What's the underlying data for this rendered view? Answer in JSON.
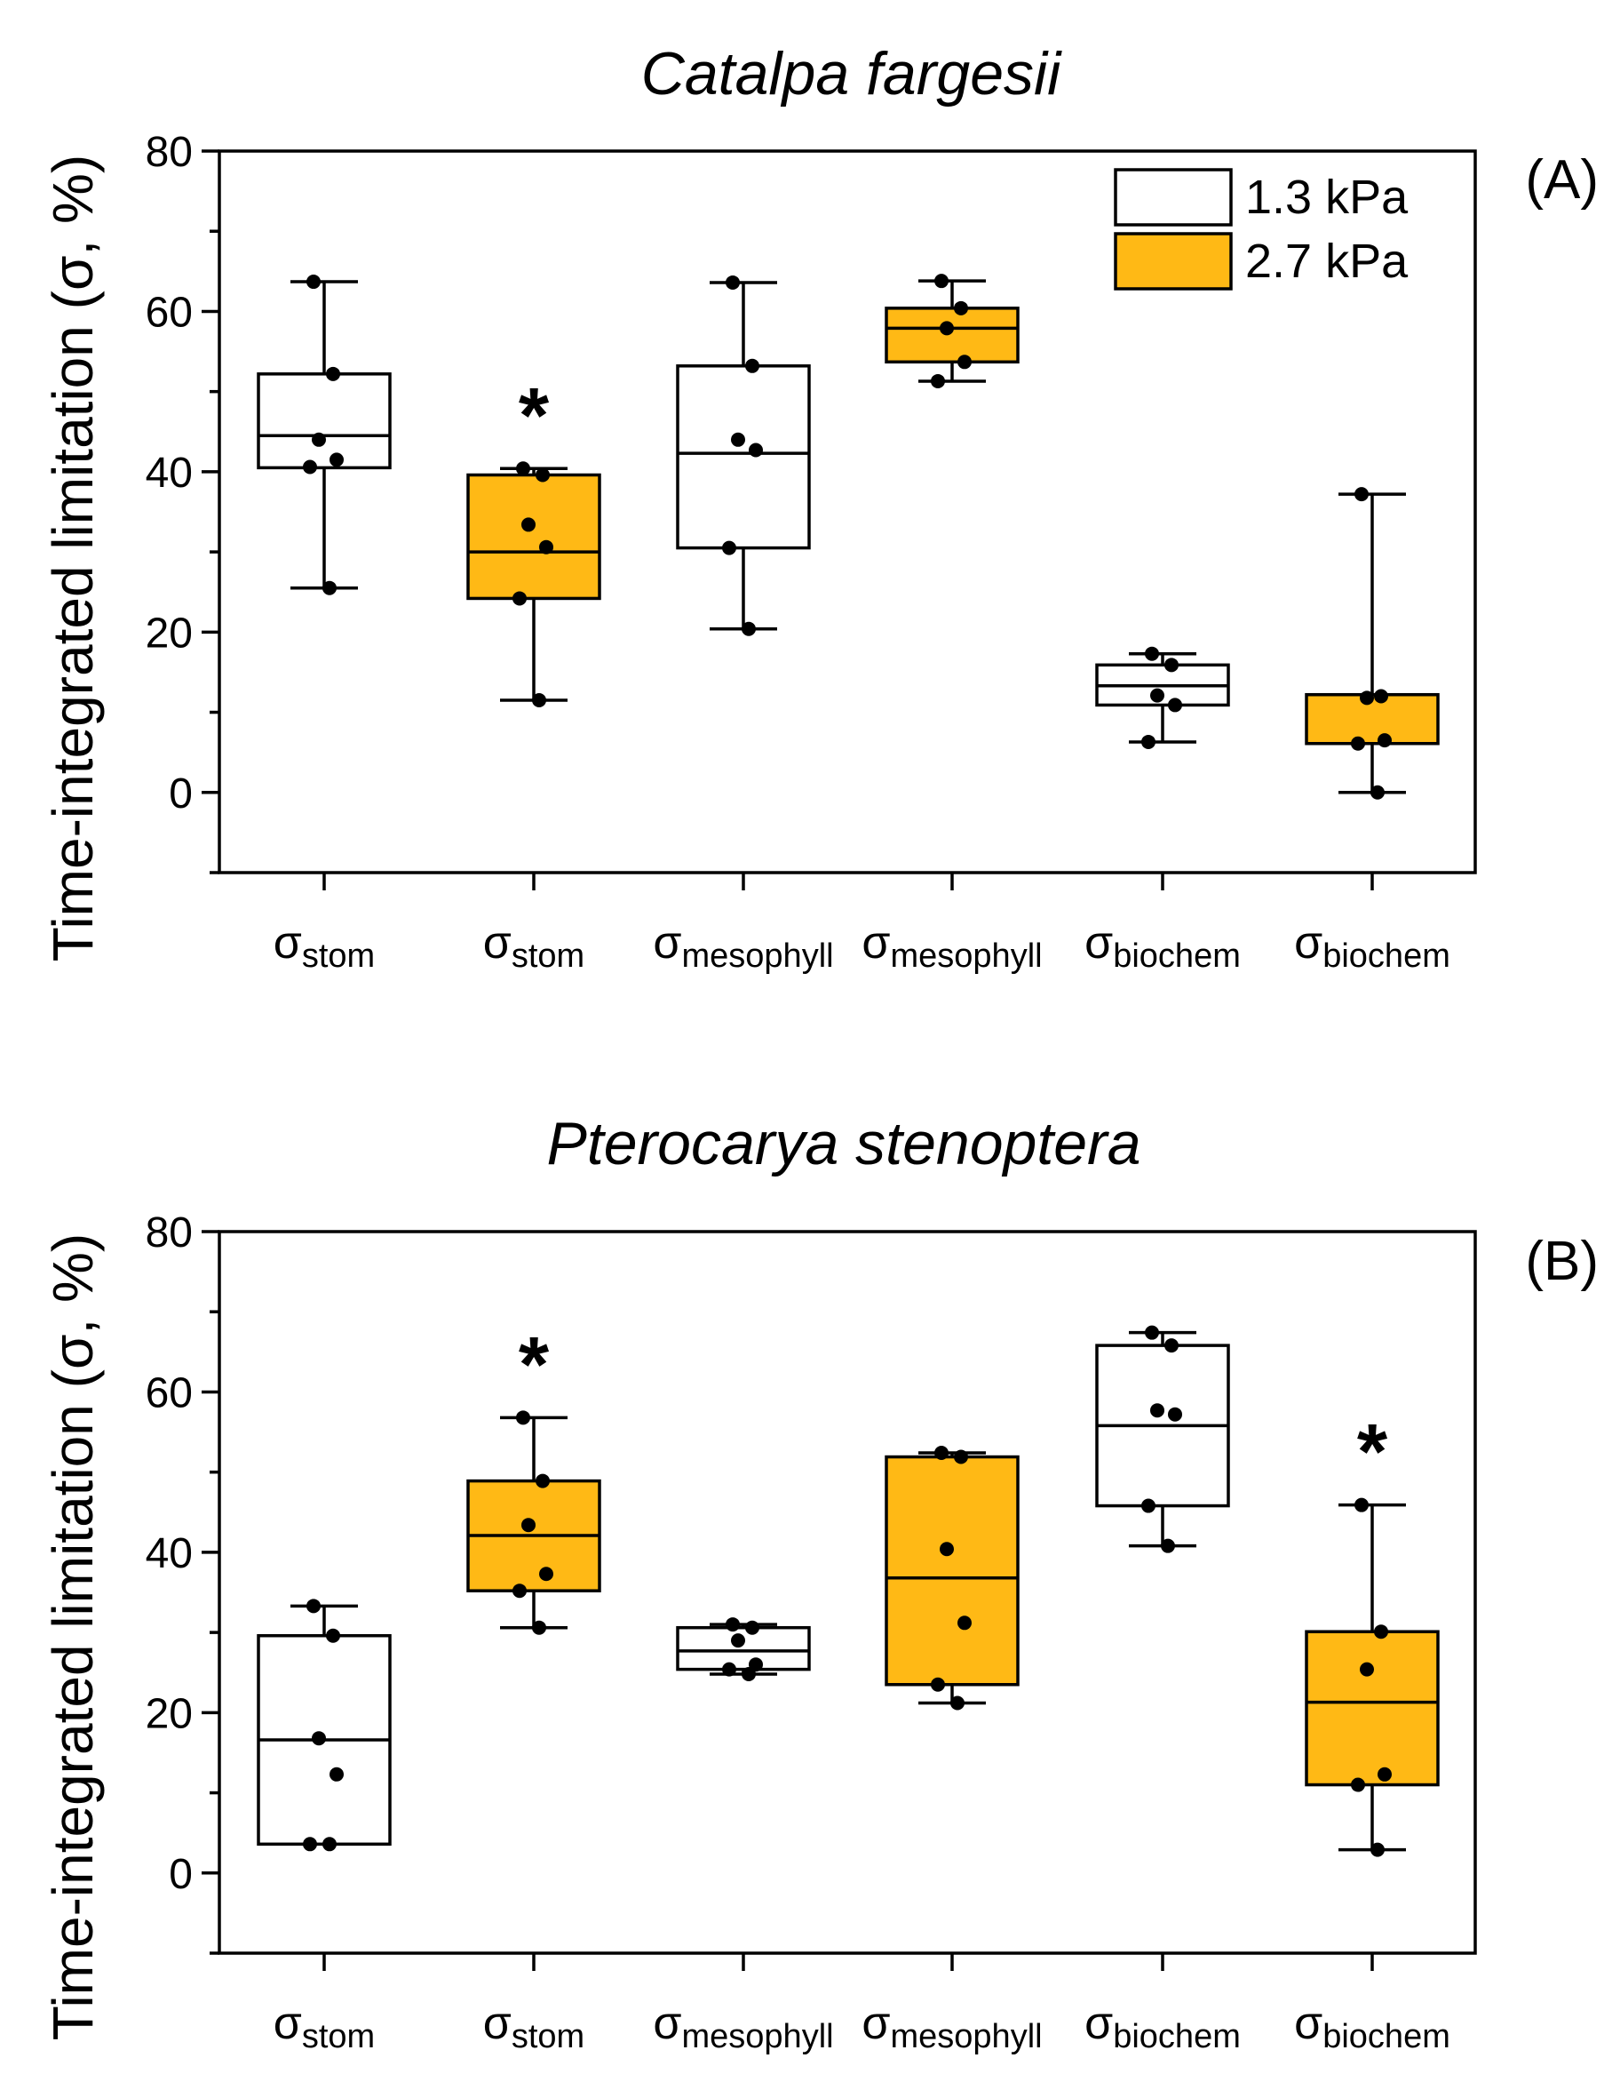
{
  "y_axis_label": "Time-integrated limitation (σ, %)",
  "legend": [
    {
      "label": "1.3 kPa",
      "color": "#ffffff"
    },
    {
      "label": "2.7 kPa",
      "color": "#FFB915"
    }
  ],
  "significance_marker": "*",
  "category_symbol": "σ",
  "chart_data": [
    {
      "type": "box",
      "panel": "(A)",
      "title": "Catalpa fargesii",
      "ylabel": "Time-integrated limitation (σ, %)",
      "ylim": [
        -10,
        80
      ],
      "yticks": [
        0,
        20,
        40,
        60,
        80
      ],
      "categories": [
        "stom",
        "stom",
        "mesophyll",
        "mesophyll",
        "biochem",
        "biochem"
      ],
      "boxes": [
        {
          "category": "stom",
          "group": "1.3 kPa",
          "whisker_low": 25.5,
          "q1": 40.5,
          "median": 44.5,
          "q3": 52.2,
          "whisker_high": 63.7,
          "points": [
            63.7,
            52.2,
            44.0,
            41.5,
            40.6,
            25.5
          ],
          "significant": false
        },
        {
          "category": "stom",
          "group": "2.7 kPa",
          "whisker_low": 11.5,
          "q1": 24.2,
          "median": 30.0,
          "q3": 39.6,
          "whisker_high": 40.4,
          "points": [
            40.4,
            39.6,
            33.4,
            30.6,
            24.2,
            11.5
          ],
          "significant": true
        },
        {
          "category": "mesophyll",
          "group": "1.3 kPa",
          "whisker_low": 20.4,
          "q1": 30.5,
          "median": 42.3,
          "q3": 53.2,
          "whisker_high": 63.6,
          "points": [
            63.6,
            53.2,
            44.0,
            42.7,
            30.5,
            20.4
          ],
          "significant": false
        },
        {
          "category": "mesophyll",
          "group": "2.7 kPa",
          "whisker_low": 51.3,
          "q1": 53.7,
          "median": 57.9,
          "q3": 60.4,
          "whisker_high": 63.8,
          "points": [
            63.8,
            60.4,
            57.9,
            53.7,
            51.3
          ],
          "significant": false
        },
        {
          "category": "biochem",
          "group": "1.3 kPa",
          "whisker_low": 6.3,
          "q1": 10.9,
          "median": 13.3,
          "q3": 15.9,
          "whisker_high": 17.3,
          "points": [
            17.3,
            15.9,
            12.1,
            10.9,
            6.3
          ],
          "significant": false
        },
        {
          "category": "biochem",
          "group": "2.7 kPa",
          "whisker_low": 0.0,
          "q1": 6.1,
          "median": 12.2,
          "q3": 12.2,
          "whisker_high": 37.2,
          "points": [
            37.2,
            12.0,
            11.8,
            6.5,
            6.1,
            0.0
          ],
          "significant": false
        }
      ]
    },
    {
      "type": "box",
      "panel": "(B)",
      "title": "Pterocarya stenoptera",
      "ylabel": "Time-integrated limitation (σ, %)",
      "ylim": [
        -10,
        80
      ],
      "yticks": [
        0,
        20,
        40,
        60,
        80
      ],
      "categories": [
        "stom",
        "stom",
        "mesophyll",
        "mesophyll",
        "biochem",
        "biochem"
      ],
      "boxes": [
        {
          "category": "stom",
          "group": "1.3 kPa",
          "whisker_low": 3.6,
          "q1": 3.6,
          "median": 16.6,
          "q3": 29.6,
          "whisker_high": 33.3,
          "points": [
            33.3,
            29.6,
            16.8,
            12.3,
            3.6,
            3.6
          ],
          "significant": false
        },
        {
          "category": "stom",
          "group": "2.7 kPa",
          "whisker_low": 30.6,
          "q1": 35.2,
          "median": 42.1,
          "q3": 48.9,
          "whisker_high": 56.8,
          "points": [
            56.8,
            48.9,
            43.4,
            37.3,
            35.2,
            30.6
          ],
          "significant": true
        },
        {
          "category": "mesophyll",
          "group": "1.3 kPa",
          "whisker_low": 24.8,
          "q1": 25.4,
          "median": 27.7,
          "q3": 30.6,
          "whisker_high": 31.0,
          "points": [
            31.0,
            30.6,
            29.0,
            26.0,
            25.4,
            24.8
          ],
          "significant": false
        },
        {
          "category": "mesophyll",
          "group": "2.7 kPa",
          "whisker_low": 21.2,
          "q1": 23.5,
          "median": 36.8,
          "q3": 51.9,
          "whisker_high": 52.4,
          "points": [
            52.4,
            51.9,
            40.4,
            31.2,
            23.5,
            21.2
          ],
          "significant": false
        },
        {
          "category": "biochem",
          "group": "1.3 kPa",
          "whisker_low": 40.8,
          "q1": 45.8,
          "median": 55.8,
          "q3": 65.8,
          "whisker_high": 67.4,
          "points": [
            67.4,
            65.8,
            57.7,
            57.2,
            45.8,
            40.8
          ],
          "significant": false
        },
        {
          "category": "biochem",
          "group": "2.7 kPa",
          "whisker_low": 2.9,
          "q1": 11.0,
          "median": 21.3,
          "q3": 30.1,
          "whisker_high": 45.9,
          "points": [
            45.9,
            30.1,
            25.4,
            12.3,
            11.0,
            2.9
          ],
          "significant": true
        }
      ]
    }
  ]
}
